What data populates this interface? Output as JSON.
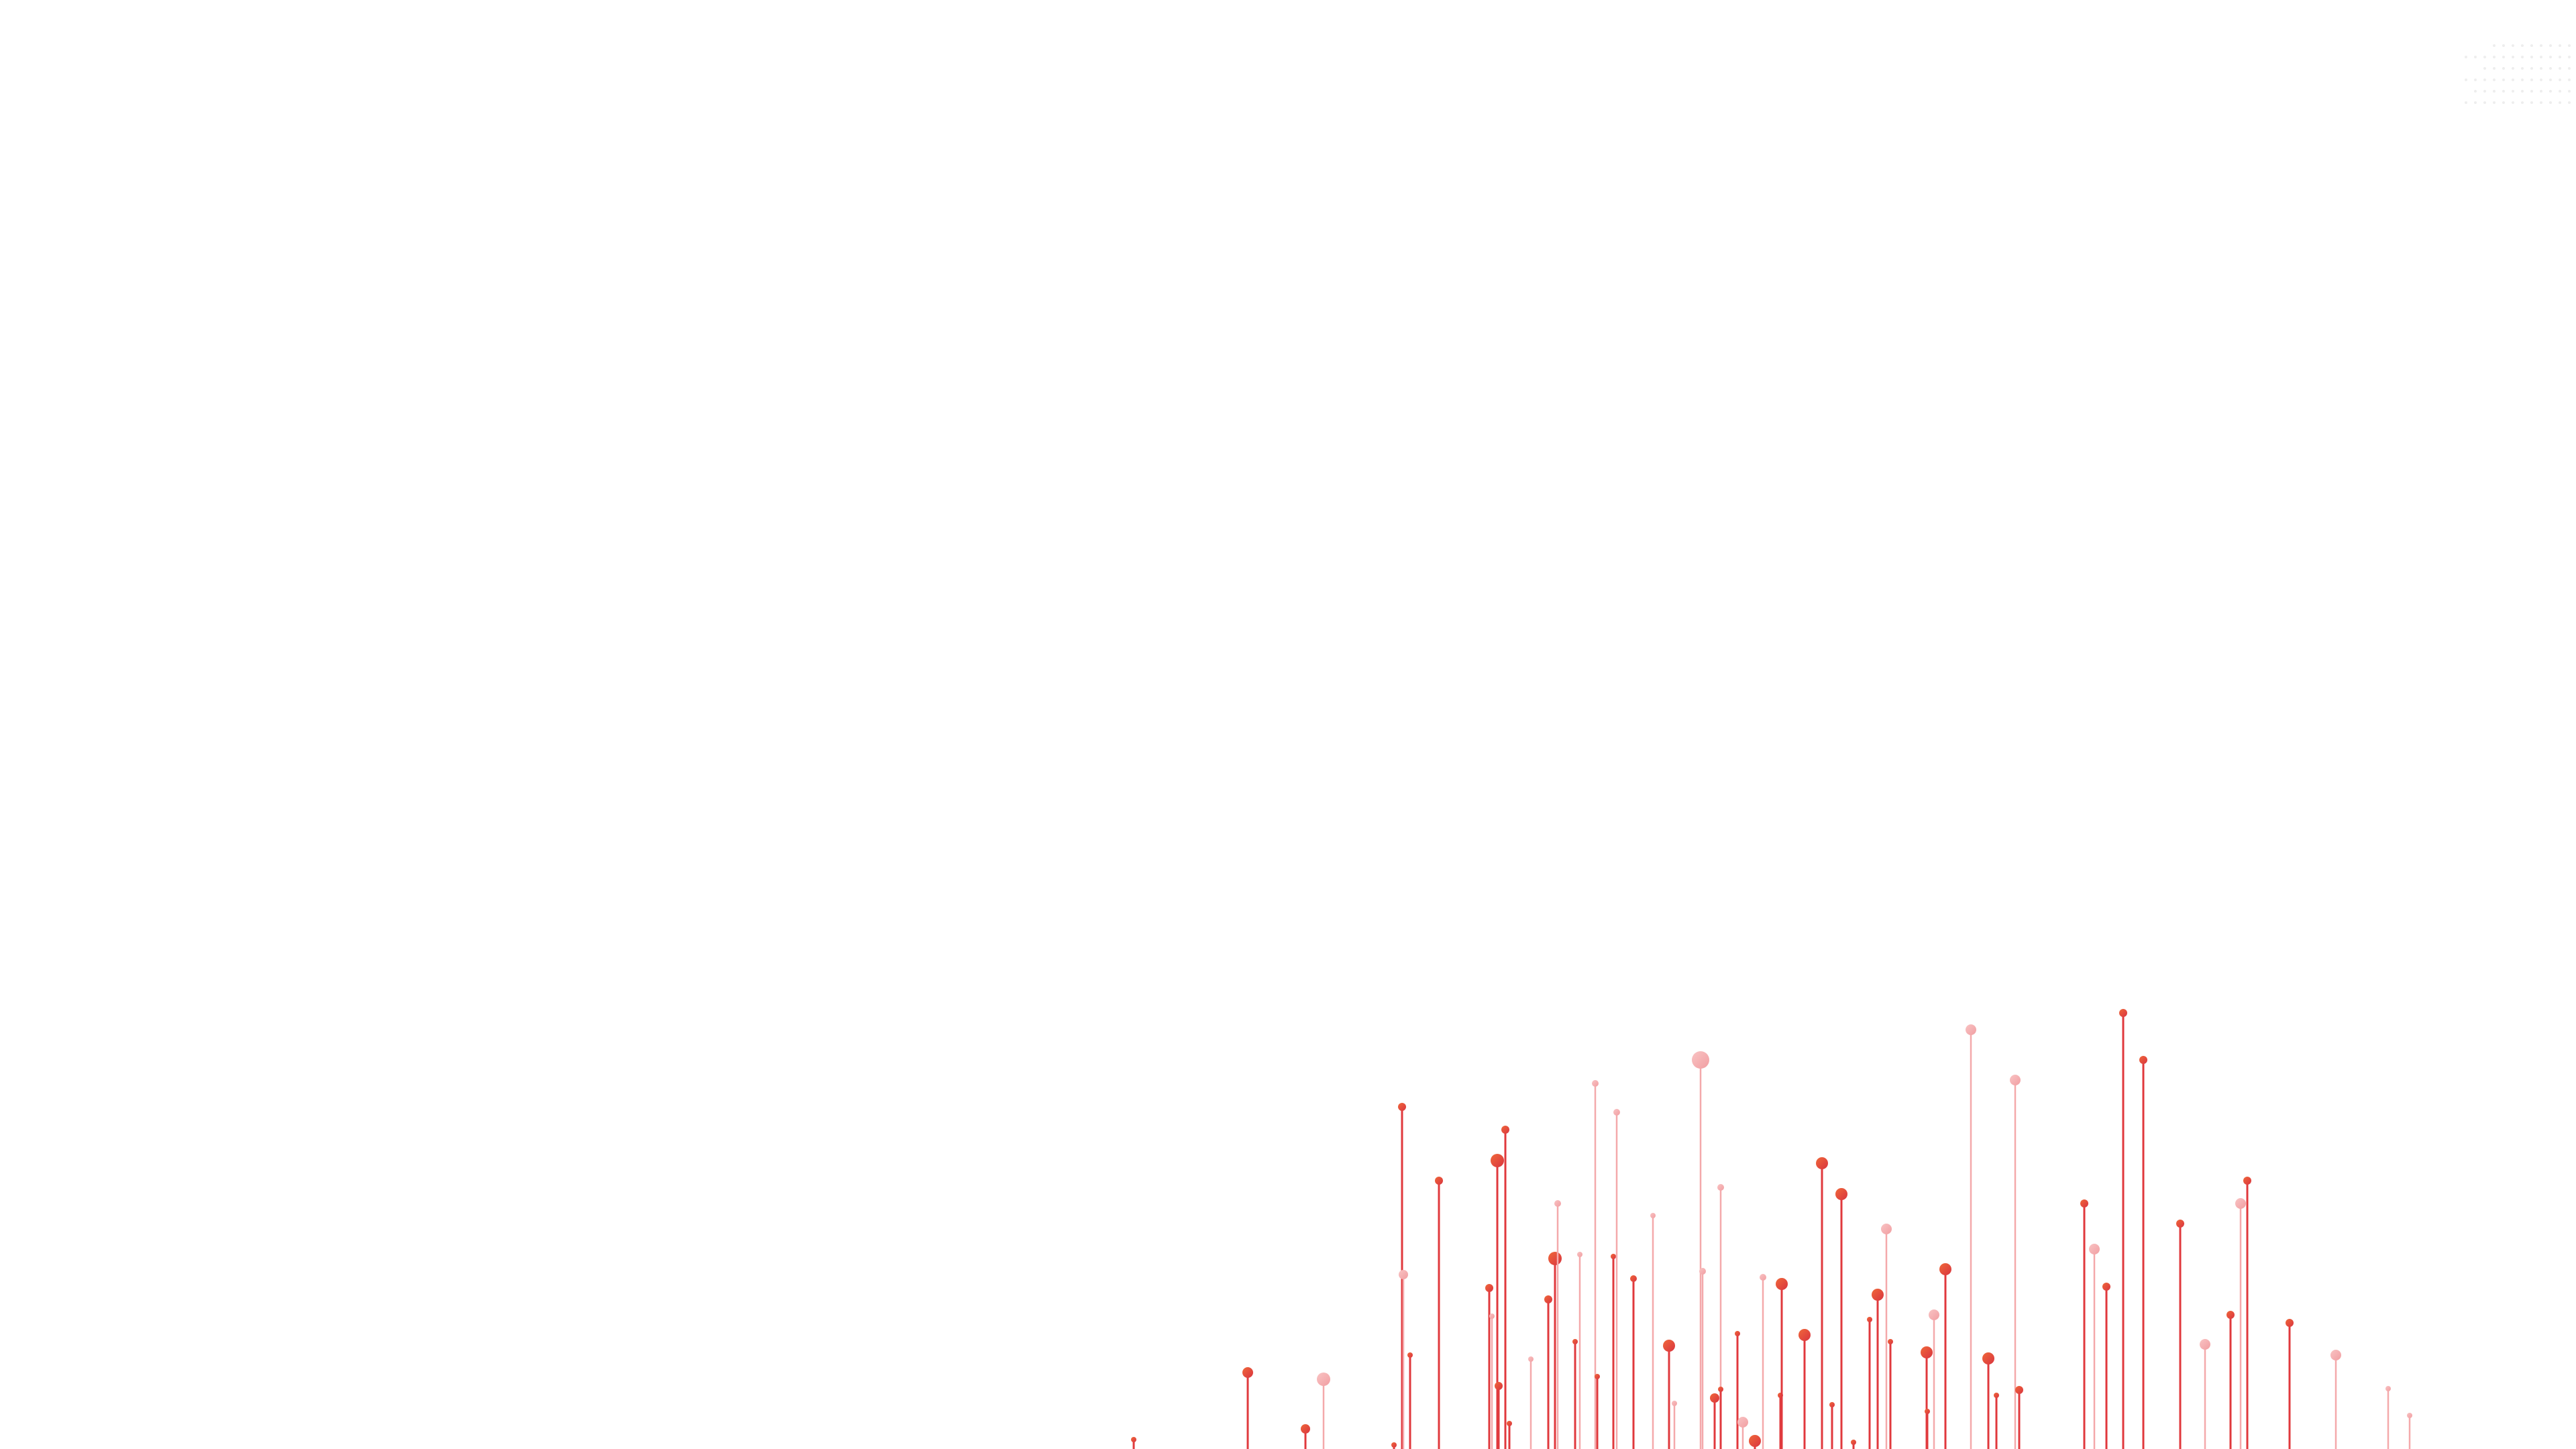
{
  "background_color": "#ffffff",
  "palette": {
    "strong": "#e0393d",
    "strong_head": "#e44a3c",
    "light": "#f4a9ab",
    "light_head": "#f6b4b6",
    "dot_grid": "#eeeeee"
  },
  "decor": {
    "dot_grid_icon": "dot-grid-pattern",
    "pin_icon": "lollipop-pin"
  }
}
